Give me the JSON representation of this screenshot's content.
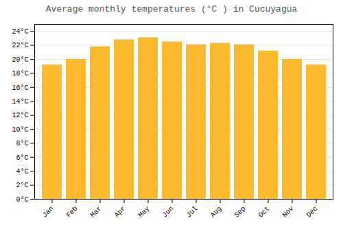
{
  "chart_data": {
    "type": "bar",
    "title": "Average monthly temperatures (°C ) in Cucuyagua",
    "categories": [
      "Jan",
      "Feb",
      "Mar",
      "Apr",
      "May",
      "Jun",
      "Jul",
      "Aug",
      "Sep",
      "Oct",
      "Nov",
      "Dec"
    ],
    "values": [
      19.2,
      20.0,
      21.8,
      22.8,
      23.1,
      22.5,
      22.1,
      22.3,
      22.1,
      21.2,
      20.0,
      19.2
    ],
    "color": "#FDB92E",
    "ylim": [
      0,
      25
    ],
    "yticks": [
      {
        "value": 0,
        "label": "0°C"
      },
      {
        "value": 2,
        "label": "2°C"
      },
      {
        "value": 4,
        "label": "4°C"
      },
      {
        "value": 6,
        "label": "6°C"
      },
      {
        "value": 8,
        "label": "8°C"
      },
      {
        "value": 10,
        "label": "10°C"
      },
      {
        "value": 12,
        "label": "12°C"
      },
      {
        "value": 14,
        "label": "14°C"
      },
      {
        "value": 16,
        "label": "16°C"
      },
      {
        "value": 18,
        "label": "18°C"
      },
      {
        "value": 20,
        "label": "20°C"
      },
      {
        "value": 22,
        "label": "22°C"
      },
      {
        "value": 24,
        "label": "24°C"
      }
    ],
    "grid": true
  }
}
